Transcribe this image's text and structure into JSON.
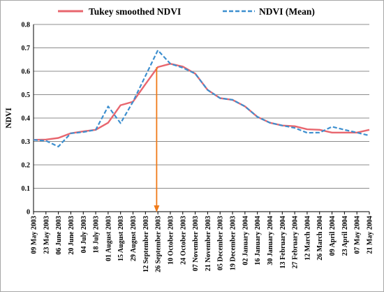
{
  "chart_data": {
    "type": "line",
    "ylabel": "NDVI",
    "xlabel": "",
    "ylim": [
      0,
      0.8
    ],
    "yticks": [
      "0",
      "0.1",
      "0.2",
      "0.3",
      "0.4",
      "0.5",
      "0.6",
      "0.7",
      "0.8"
    ],
    "grid": "horizontal",
    "legend_position": "top",
    "categories": [
      "09 May 2003",
      "23 May 2003",
      "06 June 2003",
      "20 June 2003",
      "04 July 2003",
      "18 July 2003",
      "01 August 2003",
      "15 August 2003",
      "29 August 2003",
      "12 September 2003",
      "26 September 2003",
      "10 October 2003",
      "24 October 2003",
      "07 November 2003",
      "21 November 2003",
      "05 December 2003",
      "19 December 2003",
      "02 January 2004",
      "16 January 2004",
      "30 January 2004",
      "13 February 2004",
      "27 February 2004",
      "12 March 2004",
      "26 March 2004",
      "09 April 2004",
      "23 April 2004",
      "07 May 2004",
      "21 May 2004"
    ],
    "series": [
      {
        "name": "Tukey smoothed NDVI",
        "color": "#e8666e",
        "style": "solid",
        "values": [
          0.307,
          0.308,
          0.315,
          0.335,
          0.343,
          0.35,
          0.38,
          0.455,
          0.47,
          0.545,
          0.618,
          0.632,
          0.62,
          0.59,
          0.52,
          0.485,
          0.478,
          0.45,
          0.405,
          0.38,
          0.368,
          0.365,
          0.352,
          0.35,
          0.338,
          0.338,
          0.338,
          0.35
        ]
      },
      {
        "name": "NDVI (Mean)",
        "color": "#3d8fcf",
        "style": "dashed",
        "values": [
          0.307,
          0.303,
          0.278,
          0.335,
          0.34,
          0.35,
          0.45,
          0.378,
          0.47,
          0.58,
          0.69,
          0.632,
          0.615,
          0.59,
          0.52,
          0.485,
          0.478,
          0.45,
          0.405,
          0.38,
          0.368,
          0.358,
          0.337,
          0.338,
          0.363,
          0.35,
          0.338,
          0.325
        ]
      }
    ],
    "annotations": [
      {
        "type": "arrow",
        "color": "#f07b1a",
        "x_category": "26 September 2003",
        "x_offset": -0.1,
        "y_from": 0.618,
        "y_to": 0
      }
    ]
  }
}
